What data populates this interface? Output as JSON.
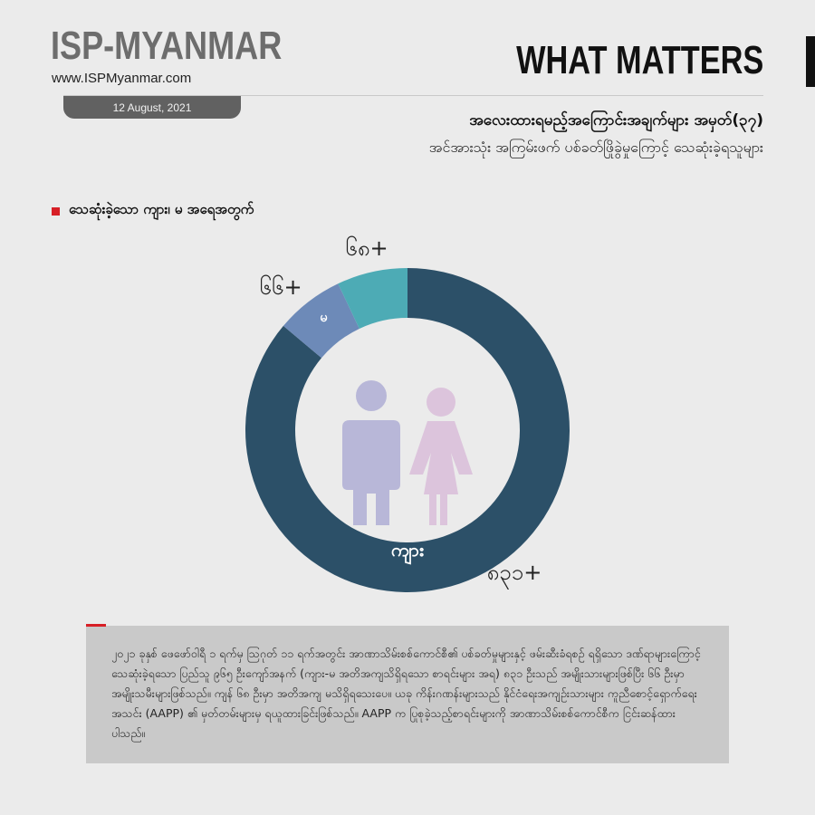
{
  "header": {
    "brand": "ISP-MYANMAR",
    "url": "www.ISPMyanmar.com",
    "date": "12 August, 2021",
    "series_title": "WHAT MATTERS",
    "headline": "အလေးထားရမည့်အကြောင်းအချက်များ အမှတ်(၃၇)",
    "subheadline": "အင်အားသုံး အကြမ်းဖက် ပစ်ခတ်ဖြိုခွဲမှုကြောင့် သေဆုံးခဲ့ရသူများ"
  },
  "legend": {
    "label": "သေဆုံးခဲ့သော ကျား၊ မ အရေအတွက်",
    "color": "#d71f26"
  },
  "chart_data": {
    "type": "pie",
    "style": "donut",
    "title": "သေဆုံးခဲ့သော ကျား၊ မ အရေအတွက်",
    "slices": [
      {
        "key": "male",
        "inner_label": "ကျား",
        "value_label": "၈၃၁+",
        "value": 831,
        "color": "#2c5068"
      },
      {
        "key": "female",
        "inner_label": "မ",
        "value_label": "၆၆+",
        "value": 66,
        "color": "#6d8ab8"
      },
      {
        "key": "unknown",
        "inner_label": "",
        "value_label": "၆၈+",
        "value": 68,
        "color": "#4dabb5"
      }
    ],
    "center_icons": [
      {
        "name": "male-figure-icon",
        "color": "#b8b7d8"
      },
      {
        "name": "female-figure-icon",
        "color": "#dcc4dc"
      }
    ]
  },
  "note": {
    "text": "၂၀၂၁ ခုနှစ် ဖေဖော်ဝါရီ ၁ ရက်မှ ဩဂုတ် ၁၁ ရက်အတွင်း အာဏာသိမ်းစစ်ကောင်စီ၏ ပစ်ခတ်မှုများနှင့် ဖမ်းဆီးခံရစဉ် ရရှိသော ဒဏ်ရာများကြောင့် သေဆုံးခဲ့ရသော ပြည်သူ ၉၆၅ ဦးကျော်အနက် (ကျား-မ အတိအကျသိရှိရသော စာရင်းများ အရ) ၈၃၁ ဦးသည် အမျိုးသားများဖြစ်ပြီး ၆၆ ဦးမှာ အမျိုးသမီးများဖြစ်သည်။ ကျန် ၆၈ ဦးမှာ အတိအကျ မသိရှိရသေးပေ။ ယခု ကိန်းဂဏန်းများသည် နိုင်ငံရေးအကျဉ်းသားများ ကူညီစောင့်ရှောက်ရေးအသင်း (AAPP) ၏ မှတ်တမ်းများမှ ရယူထားခြင်းဖြစ်သည်။ AAPP က ပြုစုခဲ့သည့်စာရင်းများကို အာဏာသိမ်းစစ်ကောင်စီက ငြင်းဆန်ထားပါသည်။"
  }
}
